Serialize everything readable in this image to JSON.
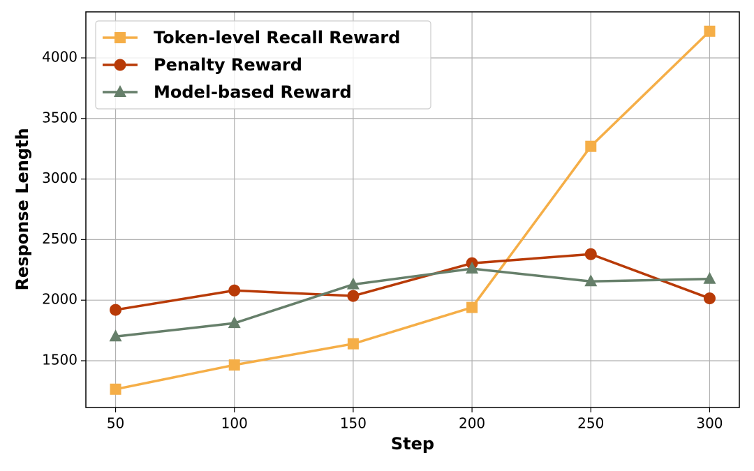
{
  "chart_data": {
    "type": "line",
    "x_label": "Step",
    "y_label": "Response Length",
    "x": [
      50,
      100,
      150,
      200,
      250,
      300
    ],
    "series": [
      {
        "name": "Token-level Recall Reward",
        "color": "#f5ae47",
        "marker": "square",
        "values": [
          1265,
          1465,
          1640,
          1940,
          3270,
          4220
        ]
      },
      {
        "name": "Penalty Reward",
        "color": "#b83a07",
        "marker": "circle",
        "values": [
          1920,
          2080,
          2035,
          2305,
          2380,
          2015
        ]
      },
      {
        "name": "Model-based Reward",
        "color": "#667f6a",
        "marker": "triangle",
        "values": [
          1700,
          1810,
          2130,
          2260,
          2155,
          2175
        ]
      }
    ],
    "xlim": [
      37.5,
      312.5
    ],
    "ylim": [
      1114,
      4380
    ],
    "xticks": [
      50,
      100,
      150,
      200,
      250,
      300
    ],
    "yticks": [
      1500,
      2000,
      2500,
      3000,
      3500,
      4000
    ],
    "grid": true,
    "legend_loc": "upper left"
  }
}
